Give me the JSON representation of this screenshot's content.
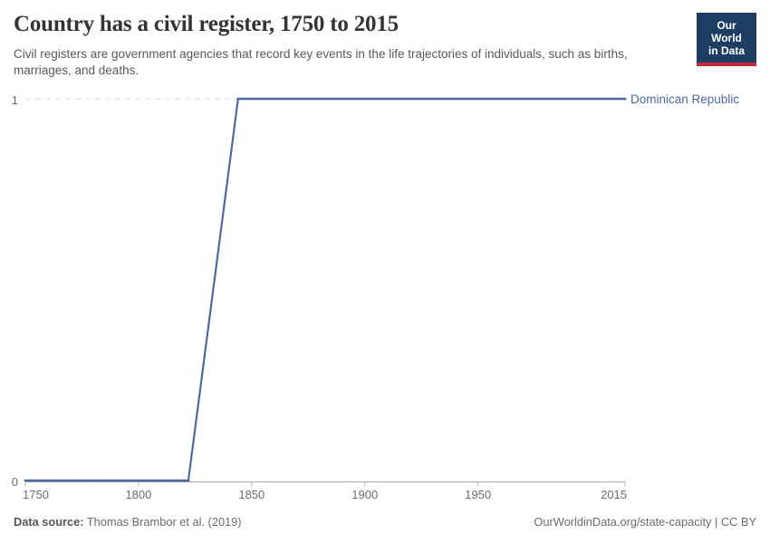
{
  "header": {
    "title": "Country has a civil register, 1750 to 2015",
    "subtitle": "Civil registers are government agencies that record key events in the life trajectories of individuals, such as births, marriages, and deaths."
  },
  "logo": {
    "line1": "Our World",
    "line2": "in Data",
    "bg_color": "#1d3d63",
    "accent_color": "#c1293b",
    "text_color": "#ffffff"
  },
  "chart_data": {
    "type": "line",
    "title": "Country has a civil register, 1750 to 2015",
    "xlabel": "",
    "ylabel": "",
    "xlim": [
      1750,
      2015
    ],
    "ylim": [
      0,
      1
    ],
    "x_ticks": [
      1750,
      1800,
      1850,
      1900,
      1950,
      2015
    ],
    "y_ticks": [
      0,
      1
    ],
    "grid": "dashed horizontal gridline at y=1; solid x-axis at y=0",
    "legend_position": "label at right end of line",
    "series": [
      {
        "name": "Dominican Republic",
        "color": "#4C6A9E",
        "points": [
          [
            1750,
            0
          ],
          [
            1822,
            0
          ],
          [
            1844,
            1
          ],
          [
            2015,
            1
          ]
        ],
        "note": "binary indicator: 0 from 1750 until ~1822, rises to 1 by ~1844, remains 1 through 2015; yearly point markers along flat segments"
      }
    ],
    "axis_color": "#a9a9a9",
    "tick_label_color": "#6b6b6b",
    "gridline_color": "#d9d9d9"
  },
  "footer": {
    "source_label": "Data source:",
    "source_value": " Thomas Brambor et al. (2019)",
    "attribution": "OurWorldinData.org/state-capacity | CC BY"
  }
}
